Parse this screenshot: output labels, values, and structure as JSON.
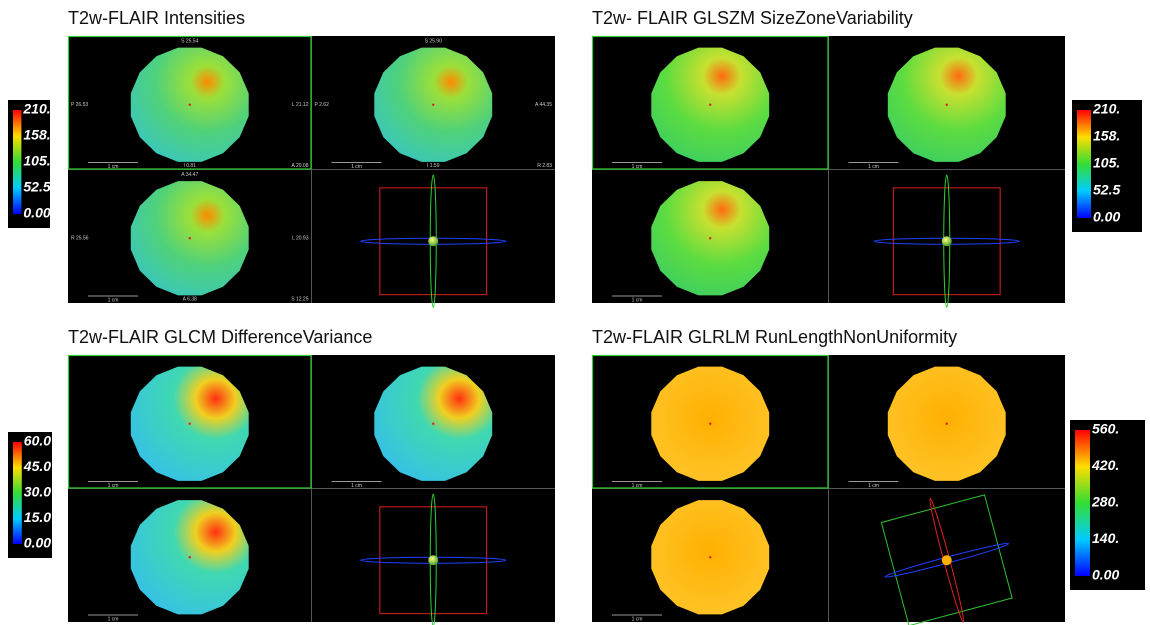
{
  "panels": [
    {
      "title": "T2w-FLAIR Intensities",
      "colorbar": [
        "210.",
        "158.",
        "105.",
        "52.5",
        "0.00"
      ],
      "views": [
        {
          "top": "S 25.54",
          "left": "P 26.53",
          "right": "L 21.12",
          "bottom": "I 0.81",
          "corner": "A 20.08",
          "scale": "1 cm"
        },
        {
          "top": "S 25.90",
          "left": "P 2.62",
          "right": "A 44.35",
          "bottom": "I 1.59",
          "corner": "R 2.83",
          "scale": "1 cm"
        },
        {
          "top": "A 34.47",
          "left": "R 25.56",
          "right": "L 20.93",
          "bottom": "A 6.38",
          "corner": "S 12.25",
          "scale": "1 cm"
        }
      ]
    },
    {
      "title": "T2w- FLAIR GLSZM SizeZoneVariability",
      "colorbar": [
        "210.",
        "158.",
        "105.",
        "52.5",
        "0.00"
      ],
      "views": [
        {
          "scale": "1 cm"
        },
        {
          "scale": "1 cm"
        },
        {
          "scale": "1 cm"
        }
      ]
    },
    {
      "title": "T2w-FLAIR GLCM DifferenceVariance",
      "colorbar": [
        "60.0",
        "45.0",
        "30.0",
        "15.0",
        "0.00"
      ],
      "views": [
        {
          "scale": "1 cm"
        },
        {
          "scale": "1 cm"
        },
        {
          "scale": "1 cm"
        }
      ]
    },
    {
      "title": "T2w-FLAIR GLRLM RunLengthNonUniformity",
      "colorbar": [
        "560.",
        "420.",
        "280.",
        "140.",
        "0.00"
      ],
      "views": [
        {
          "scale": "1 cm"
        },
        {
          "scale": "1 cm"
        },
        {
          "scale": "1 cm"
        }
      ]
    }
  ]
}
